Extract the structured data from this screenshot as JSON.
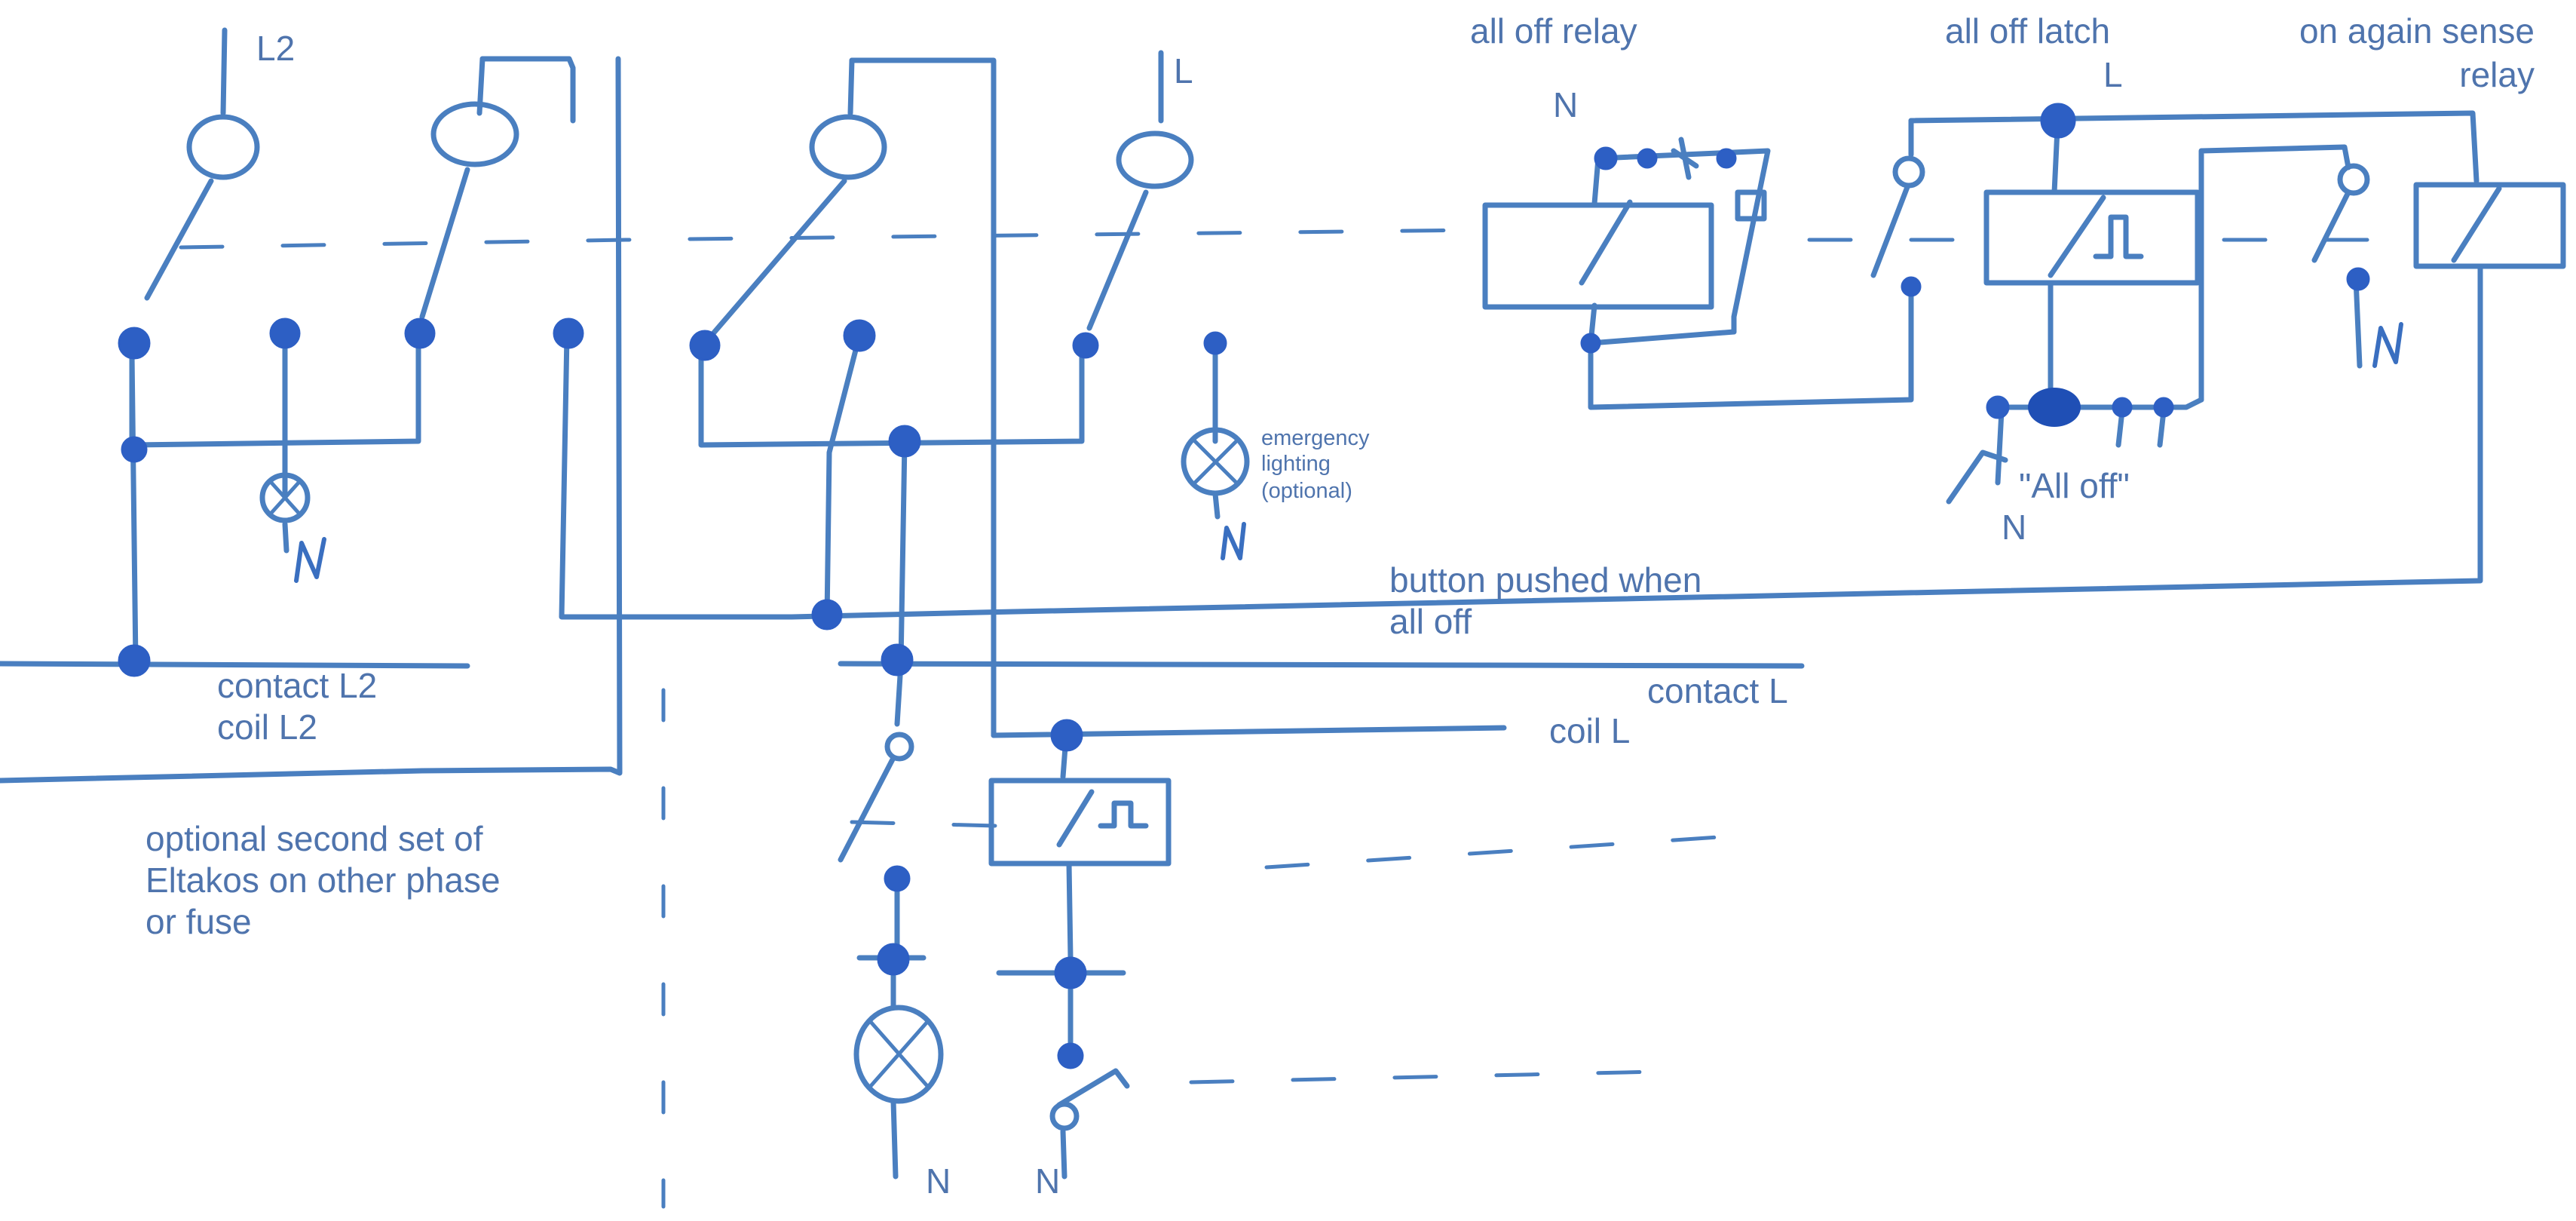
{
  "labels": {
    "l2_top": "L2",
    "l_top": "L",
    "all_off_relay": "all off relay",
    "all_off_latch": "all off latch",
    "latch_l": "L",
    "on_again_1": "on again sense",
    "on_again_2": "relay",
    "relay_n": "N",
    "emergency_1": "emergency",
    "emergency_2": "lighting",
    "emergency_3": "(optional)",
    "all_off_button": "\"All off\"",
    "all_off_n": "N",
    "button_pushed_1": "button pushed when",
    "button_pushed_2": "all off",
    "contact_l2": "contact L2",
    "coil_l2": "coil L2",
    "contact_l": "contact L",
    "coil_l": "coil L",
    "optional_1": "optional second set of",
    "optional_2": "Eltakos on other phase",
    "optional_3": "or fuse",
    "n_bottom_lamp": "N",
    "n_bottom_switch": "N"
  },
  "colors": {
    "ink": "#4a7fc0",
    "dot": "#2d5fc4",
    "text": "#4f74ad"
  }
}
